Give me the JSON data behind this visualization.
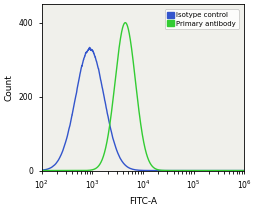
{
  "title": "",
  "xlabel": "FITC-A",
  "ylabel": "Count",
  "xlim_log": [
    2,
    6
  ],
  "ylim": [
    0,
    450
  ],
  "yticks": [
    0,
    200,
    400
  ],
  "blue_peak_log": 2.95,
  "blue_sigma_log": 0.28,
  "blue_height": 330,
  "green_peak_log": 3.65,
  "green_sigma_log": 0.2,
  "green_height": 400,
  "blue_color": "#3355cc",
  "green_color": "#33cc33",
  "legend_labels": [
    "Isotype control",
    "Primary antibody"
  ],
  "legend_colors": [
    "#3355cc",
    "#33cc33"
  ],
  "bg_color": "#f0f0eb",
  "lw": 1.0,
  "figsize": [
    2.56,
    2.1
  ],
  "dpi": 100
}
